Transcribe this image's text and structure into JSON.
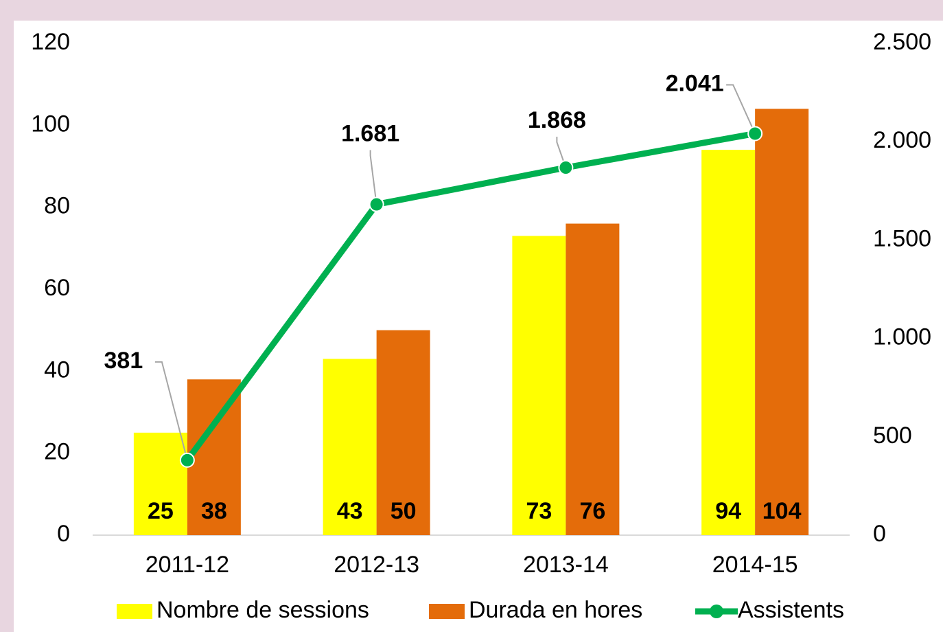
{
  "chart_data": {
    "type": "bar",
    "categories": [
      "2011-12",
      "2012-13",
      "2013-14",
      "2014-15"
    ],
    "series": [
      {
        "name": "Nombre de sessions",
        "color": "#ffff00",
        "values": [
          25,
          43,
          73,
          94
        ]
      },
      {
        "name": "Durada en hores",
        "color": "#e46c0a",
        "values": [
          38,
          50,
          76,
          104
        ]
      },
      {
        "name": "Assistents",
        "color": "#00b050",
        "type": "line",
        "axis": "y2",
        "values": [
          381,
          1681,
          1868,
          2041
        ],
        "value_labels": [
          "381",
          "1.681",
          "1.868",
          "2.041"
        ]
      }
    ],
    "ylim": [
      0,
      120
    ],
    "yticks": [
      0,
      20,
      40,
      60,
      80,
      100,
      120
    ],
    "y2lim": [
      0,
      2500
    ],
    "y2ticks": [
      0,
      500,
      {
        "value": 1000,
        "label": "1.000"
      },
      {
        "value": 1500,
        "label": "1.500"
      },
      {
        "value": 2000,
        "label": "2.000"
      },
      {
        "value": 2500,
        "label": "2.500"
      }
    ],
    "grid": false,
    "legend": "bottom"
  }
}
